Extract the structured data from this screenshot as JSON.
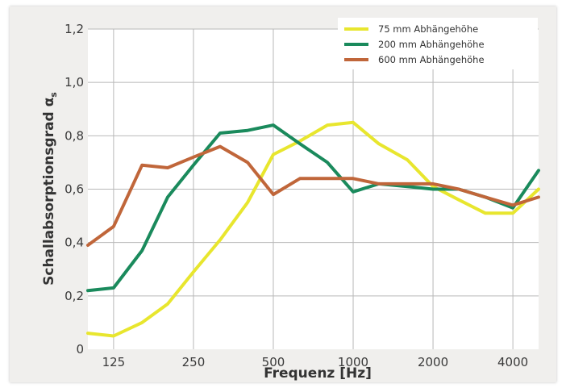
{
  "chart_data": {
    "type": "line",
    "xlabel": "Frequenz [Hz]",
    "ylabel": "Schallabsorptionsgrad α",
    "ylabel_sub": "s",
    "x_scale": "log2",
    "xlim": [
      100,
      5000
    ],
    "ylim": [
      0,
      1.2
    ],
    "grid": true,
    "legend_position": "top-right",
    "x_ticks": [
      125,
      250,
      500,
      1000,
      2000,
      4000
    ],
    "x_tick_labels": [
      "125",
      "250",
      "500",
      "1000",
      "2000",
      "4000"
    ],
    "y_ticks": [
      0,
      0.2,
      0.4,
      0.6,
      0.8,
      1.0,
      1.2
    ],
    "y_tick_labels": [
      "0",
      "0,2",
      "0,4",
      "0,6",
      "0,8",
      "1,0",
      "1,2"
    ],
    "x": [
      100,
      125,
      160,
      200,
      250,
      315,
      400,
      500,
      630,
      800,
      1000,
      1250,
      1600,
      2000,
      2500,
      3150,
      4000,
      5000
    ],
    "series": [
      {
        "name": "75 mm Abhängehöhe",
        "color": "#e8e62e",
        "values": [
          0.06,
          0.05,
          0.1,
          0.17,
          0.29,
          0.41,
          0.55,
          0.73,
          0.78,
          0.84,
          0.85,
          0.77,
          0.71,
          0.61,
          0.56,
          0.51,
          0.51,
          0.6
        ]
      },
      {
        "name": "200 mm Abhängehöhe",
        "color": "#1a8a5c",
        "values": [
          0.22,
          0.23,
          0.37,
          0.57,
          0.69,
          0.81,
          0.82,
          0.84,
          0.77,
          0.7,
          0.59,
          0.62,
          0.61,
          0.6,
          0.6,
          0.57,
          0.53,
          0.67
        ]
      },
      {
        "name": "600 mm Abhängehöhe",
        "color": "#c0663a",
        "values": [
          0.39,
          0.46,
          0.69,
          0.68,
          0.72,
          0.76,
          0.7,
          0.58,
          0.64,
          0.64,
          0.64,
          0.62,
          0.62,
          0.62,
          0.6,
          0.57,
          0.54,
          0.57
        ]
      }
    ]
  }
}
